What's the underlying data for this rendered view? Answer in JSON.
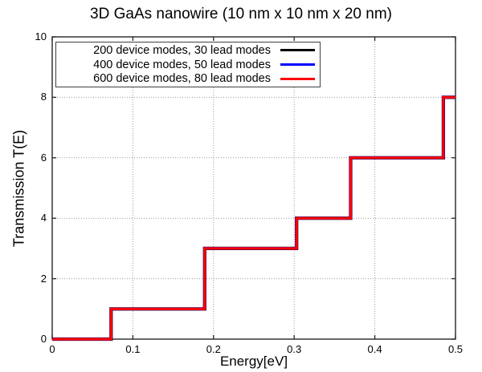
{
  "colors": {
    "background": "#ffffff",
    "border": "#262626",
    "grid": "#999999",
    "text": "#000000",
    "series_black": "#000000",
    "series_blue": "#0000ff",
    "series_red": "#ff0000"
  },
  "chart_data": {
    "type": "line",
    "line_style": "step",
    "title": "3D GaAs nanowire (10 nm x 10 nm x 20 nm)",
    "xlabel": "Energy[eV]",
    "ylabel": "Transmission T(E)",
    "xlim": [
      0,
      0.5
    ],
    "ylim": [
      0,
      10
    ],
    "xticks": [
      0,
      0.1,
      0.2,
      0.3,
      0.4,
      0.5
    ],
    "xtick_labels": [
      "0",
      "0.1",
      "0.2",
      "0.3",
      "0.4",
      "0.5"
    ],
    "yticks": [
      0,
      2,
      4,
      6,
      8,
      10
    ],
    "ytick_labels": [
      "0",
      "2",
      "4",
      "6",
      "8",
      "10"
    ],
    "grid": true,
    "legend_position": "top-left",
    "series": [
      {
        "name": "200 device modes, 30 lead modes",
        "color": "#000000",
        "steps": [
          [
            0,
            0
          ],
          [
            0.073,
            1
          ],
          [
            0.189,
            3
          ],
          [
            0.303,
            4
          ],
          [
            0.37,
            6
          ],
          [
            0.485,
            8
          ]
        ]
      },
      {
        "name": "400 device modes, 50 lead modes",
        "color": "#0000ff",
        "steps": [
          [
            0,
            0
          ],
          [
            0.073,
            1
          ],
          [
            0.189,
            3
          ],
          [
            0.303,
            4
          ],
          [
            0.37,
            6
          ],
          [
            0.485,
            8
          ]
        ]
      },
      {
        "name": "600 device modes, 80 lead modes",
        "color": "#ff0000",
        "steps": [
          [
            0,
            0
          ],
          [
            0.073,
            1
          ],
          [
            0.189,
            3
          ],
          [
            0.303,
            4
          ],
          [
            0.37,
            6
          ],
          [
            0.485,
            8
          ]
        ]
      }
    ]
  }
}
